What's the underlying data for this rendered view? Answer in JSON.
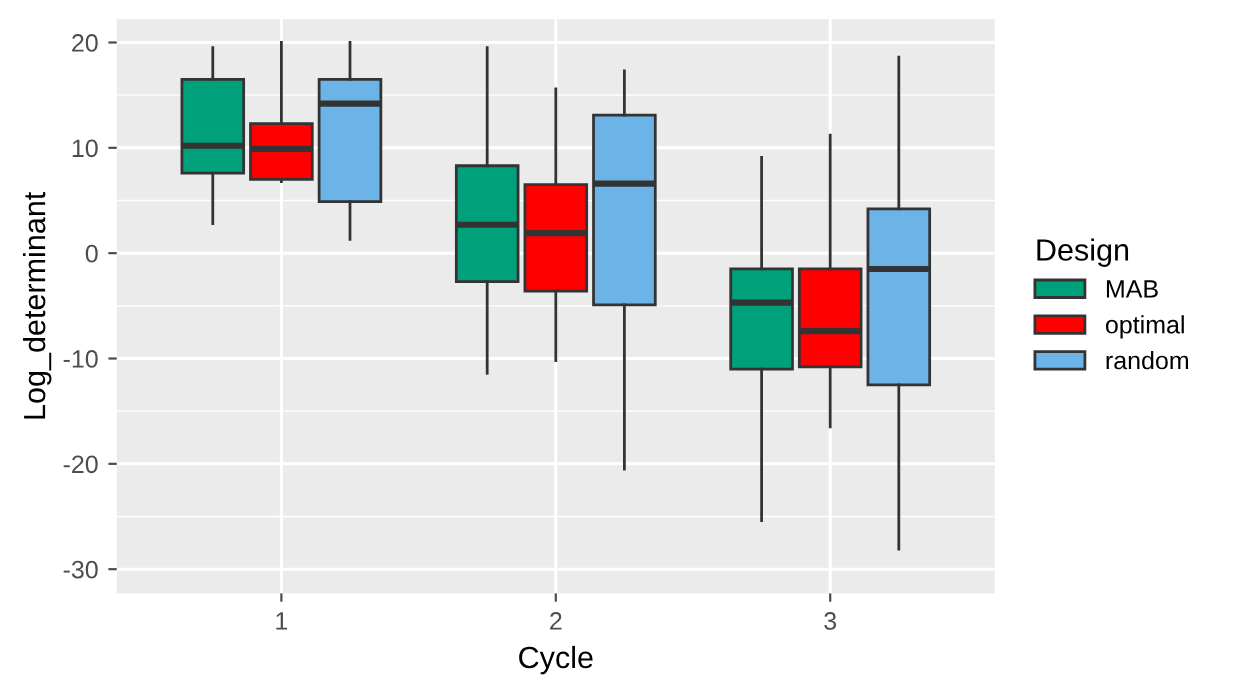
{
  "chart_data": {
    "type": "box",
    "xlabel": "Cycle",
    "ylabel": "Log_determinant",
    "legend_title": "Design",
    "categories": [
      "1",
      "2",
      "3"
    ],
    "ylim": [
      -32.3,
      22.2
    ],
    "yticks": [
      -30,
      -20,
      -10,
      0,
      10,
      20
    ],
    "grid": true,
    "legend": "right",
    "series": [
      {
        "name": "MAB",
        "color": "#00a07a",
        "boxes": [
          {
            "low": 2.8,
            "q1": 7.6,
            "median": 10.2,
            "q3": 16.5,
            "high": 19.5
          },
          {
            "low": -11.4,
            "q1": -2.7,
            "median": 2.7,
            "q3": 8.3,
            "high": 19.5
          },
          {
            "low": -25.4,
            "q1": -11.0,
            "median": -4.7,
            "q3": -1.5,
            "high": 9.1
          }
        ]
      },
      {
        "name": "optimal",
        "color": "#ff0000",
        "boxes": [
          {
            "low": 6.8,
            "q1": 7.0,
            "median": 9.9,
            "q3": 12.3,
            "high": 20.0
          },
          {
            "low": -10.2,
            "q1": -3.6,
            "median": 1.9,
            "q3": 6.5,
            "high": 15.6
          },
          {
            "low": -16.5,
            "q1": -10.8,
            "median": -7.4,
            "q3": -1.5,
            "high": 11.2
          }
        ]
      },
      {
        "name": "random",
        "color": "#6cb4e8",
        "boxes": [
          {
            "low": 1.3,
            "q1": 4.9,
            "median": 14.2,
            "q3": 16.5,
            "high": 20.0
          },
          {
            "low": -20.5,
            "q1": -4.9,
            "median": 6.6,
            "q3": 13.1,
            "high": 17.3
          },
          {
            "low": -28.1,
            "q1": -12.5,
            "median": -1.5,
            "q3": 4.2,
            "high": 18.6
          }
        ]
      }
    ]
  }
}
